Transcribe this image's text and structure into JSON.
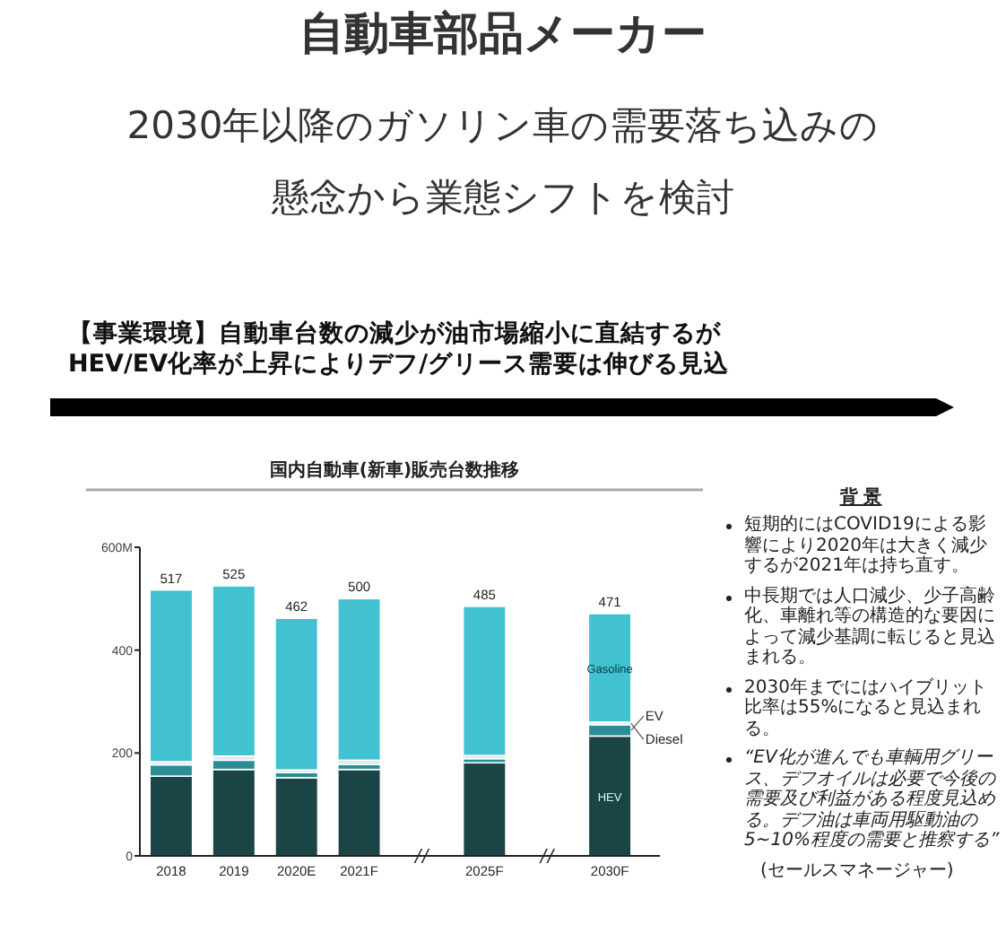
{
  "chart_data": {
    "type": "bar",
    "stacked": true,
    "title": "自動車部品メーカー",
    "subtitle": "2030年以降のガソリン車の需要落ち込みの懸念から業態シフトを検討",
    "categories": [
      "2018",
      "2019",
      "2020E",
      "2021F",
      null,
      "2025F",
      null,
      "2030F"
    ],
    "series": [
      {
        "name": "HEV",
        "color": "#1b4446",
        "values": [
          155,
          168,
          152,
          168,
          null,
          181,
          null,
          233
        ]
      },
      {
        "name": "EV",
        "color": "#2b8e95",
        "values": [
          22,
          18,
          10,
          10,
          null,
          8,
          null,
          22
        ]
      },
      {
        "name": "Diesel",
        "color": "#dde8ea",
        "values": [
          6,
          8,
          5,
          8,
          null,
          6,
          null,
          5
        ]
      },
      {
        "name": "Gasoline",
        "color": "#42c2d0",
        "values": [
          334,
          331,
          295,
          314,
          null,
          290,
          null,
          211
        ]
      }
    ],
    "ylim": [
      0,
      600
    ],
    "yticks": [
      0,
      200,
      400,
      {
        "value": 600,
        "label": "600M"
      }
    ],
    "totals": [
      "517",
      "525",
      "462",
      "500",
      null,
      "485",
      null,
      "471"
    ],
    "annotations": [
      "【事業環境】自動車台数の減少が油市場縮小に直結するがHEV/EV化率が上昇によりデフ/グリース需要は伸びる見込",
      "国内自動車(新車)販売台数推移",
      "背 景",
      "短期的にはCOVID19による影響により2020年は大きく減少するが2021年は持ち直す。",
      "中長期では人口減少、少子高齢化、車離れ等の構造的な要因によって減少基調に転じると見込まれる。",
      "2030年までにはハイブリット比率は55%になると見込まれる。",
      "“EV化が進んでも車輌用グリース、デフオイルは必要で今後の需要及び利益がある程度見込める。デフ油は車両用駆動油の5~10%程度の需要と推察する”",
      "(セールスマネージャー)"
    ]
  }
}
